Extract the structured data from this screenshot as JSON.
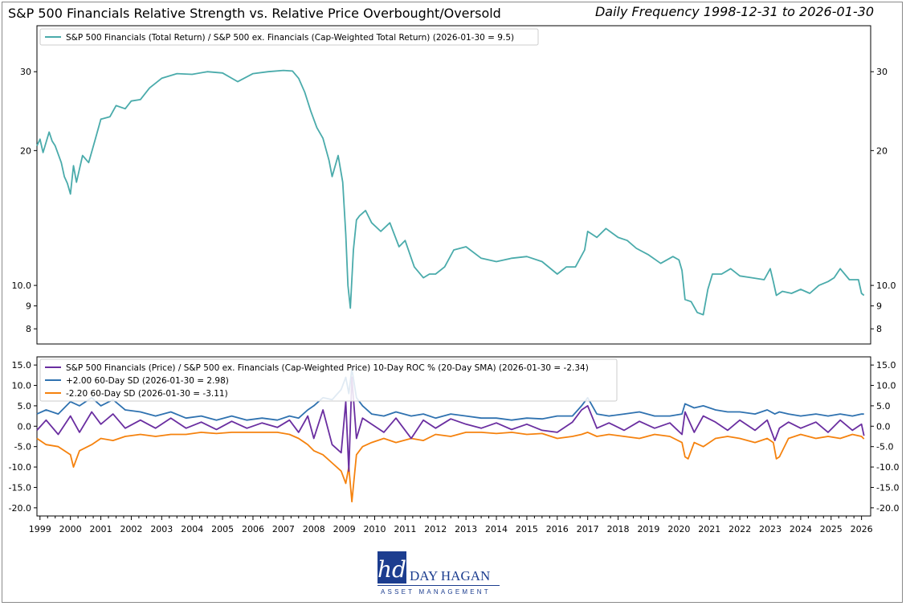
{
  "title": "S&P 500 Financials Relative Strength vs. Relative Price Overbought/Oversold",
  "subtitle": "Daily Frequency 1998-12-31 to 2026-01-30",
  "colors": {
    "ratio": "#4aabab",
    "roc": "#6a2ea0",
    "upper": "#2f72b0",
    "lower": "#f5820e",
    "logo_blue": "#1c3d8f"
  },
  "logo": {
    "monogram": "hd",
    "name": "DAY HAGAN",
    "tagline": "ASSET MANAGEMENT"
  },
  "chart_data": [
    {
      "type": "line",
      "scale": "log",
      "yticks": [
        8,
        9,
        10.0,
        20,
        30
      ],
      "ytick_labels": [
        "8",
        "9",
        "10.0",
        "20",
        "30"
      ],
      "ylim": [
        7.4,
        38
      ],
      "xlim": [
        1998.9,
        2026.3
      ],
      "legend_placement": "top-left",
      "series": [
        {
          "name": "S&P 500 Financials (Total Return) / S&P 500 ex. Financials (Cap-Weighted Total Return) (2026-01-30 = 9.5)",
          "x": [
            1998.9,
            1999.0,
            1999.1,
            1999.3,
            1999.4,
            1999.5,
            1999.7,
            1999.8,
            1999.9,
            2000.0,
            2000.1,
            2000.2,
            2000.4,
            2000.6,
            2000.8,
            2001.0,
            2001.3,
            2001.5,
            2001.8,
            2002.0,
            2002.3,
            2002.6,
            2003.0,
            2003.5,
            2004.0,
            2004.5,
            2005.0,
            2005.5,
            2006.0,
            2006.5,
            2007.0,
            2007.3,
            2007.5,
            2007.7,
            2007.9,
            2008.1,
            2008.3,
            2008.5,
            2008.6,
            2008.8,
            2008.95,
            2009.05,
            2009.12,
            2009.2,
            2009.3,
            2009.4,
            2009.5,
            2009.7,
            2009.9,
            2010.2,
            2010.5,
            2010.8,
            2011.0,
            2011.3,
            2011.6,
            2011.8,
            2012.0,
            2012.3,
            2012.6,
            2013.0,
            2013.5,
            2014.0,
            2014.5,
            2015.0,
            2015.5,
            2016.0,
            2016.3,
            2016.6,
            2016.9,
            2017.0,
            2017.3,
            2017.6,
            2018.0,
            2018.3,
            2018.6,
            2019.0,
            2019.4,
            2019.8,
            2020.0,
            2020.1,
            2020.2,
            2020.4,
            2020.6,
            2020.8,
            2020.95,
            2021.1,
            2021.4,
            2021.7,
            2022.0,
            2022.4,
            2022.8,
            2023.0,
            2023.1,
            2023.2,
            2023.4,
            2023.7,
            2024.0,
            2024.3,
            2024.6,
            2024.9,
            2025.1,
            2025.3,
            2025.6,
            2025.9,
            2026.0,
            2026.08
          ],
          "values": [
            20.5,
            21.2,
            19.8,
            22.0,
            21.0,
            20.5,
            18.8,
            17.5,
            16.9,
            16.0,
            18.5,
            17.0,
            19.5,
            18.8,
            21.0,
            23.5,
            23.8,
            25.2,
            24.8,
            25.8,
            26.0,
            27.6,
            29.0,
            29.7,
            29.6,
            30.0,
            29.8,
            28.5,
            29.7,
            30.0,
            30.2,
            30.1,
            29.0,
            27.0,
            24.5,
            22.5,
            21.3,
            19.0,
            17.5,
            19.5,
            17.0,
            13.0,
            10.0,
            8.9,
            12.0,
            14.0,
            14.3,
            14.7,
            13.8,
            13.2,
            13.8,
            12.2,
            12.6,
            11.0,
            10.4,
            10.6,
            10.6,
            11.0,
            12.0,
            12.2,
            11.5,
            11.3,
            11.5,
            11.6,
            11.3,
            10.6,
            11.0,
            11.0,
            12.0,
            13.2,
            12.8,
            13.4,
            12.8,
            12.6,
            12.1,
            11.7,
            11.2,
            11.6,
            11.4,
            10.8,
            9.3,
            9.2,
            8.7,
            8.6,
            9.8,
            10.6,
            10.6,
            10.9,
            10.5,
            10.4,
            10.3,
            10.9,
            10.2,
            9.5,
            9.7,
            9.6,
            9.8,
            9.6,
            10.0,
            10.2,
            10.4,
            10.9,
            10.3,
            10.3,
            9.6,
            9.5
          ]
        }
      ]
    },
    {
      "type": "line",
      "yticks": [
        -20.0,
        -15.0,
        -10.0,
        -5.0,
        0.0,
        5.0,
        10.0,
        15.0
      ],
      "ytick_labels": [
        "-20.0",
        "-15.0",
        "-10.0",
        "-5.0",
        "0.0",
        "5.0",
        "10.0",
        "15.0"
      ],
      "ylim": [
        -22,
        17
      ],
      "xlim": [
        1998.9,
        2026.3
      ],
      "xticks": [
        1999,
        2000,
        2001,
        2002,
        2003,
        2004,
        2005,
        2006,
        2007,
        2008,
        2009,
        2010,
        2011,
        2012,
        2013,
        2014,
        2015,
        2016,
        2017,
        2018,
        2019,
        2020,
        2021,
        2022,
        2023,
        2024,
        2025,
        2026
      ],
      "xtick_labels": [
        "1999",
        "2000",
        "2001",
        "2002",
        "2003",
        "2004",
        "2005",
        "2006",
        "2007",
        "2008",
        "2009",
        "2010",
        "2011",
        "2012",
        "2013",
        "2014",
        "2015",
        "2016",
        "2017",
        "2018",
        "2019",
        "2020",
        "2021",
        "2022",
        "2023",
        "2024",
        "2025",
        "2026"
      ],
      "legend_placement": "top-left",
      "series": [
        {
          "name": "S&P 500 Financials (Price) / S&P 500 ex. Financials (Cap-Weighted Price) 10-Day ROC % (20-Day SMA) (2026-01-30 = -2.34)",
          "x": [
            1998.9,
            1999.2,
            1999.6,
            2000.0,
            2000.3,
            2000.7,
            2001.0,
            2001.4,
            2001.8,
            2002.3,
            2002.8,
            2003.3,
            2003.8,
            2004.3,
            2004.8,
            2005.3,
            2005.8,
            2006.3,
            2006.8,
            2007.2,
            2007.5,
            2007.8,
            2008.0,
            2008.3,
            2008.6,
            2008.9,
            2009.05,
            2009.15,
            2009.25,
            2009.4,
            2009.6,
            2009.9,
            2010.3,
            2010.7,
            2011.2,
            2011.6,
            2012.0,
            2012.5,
            2013.0,
            2013.5,
            2014.0,
            2014.5,
            2015.0,
            2015.5,
            2016.0,
            2016.5,
            2016.8,
            2017.0,
            2017.3,
            2017.7,
            2018.2,
            2018.7,
            2019.2,
            2019.7,
            2020.1,
            2020.2,
            2020.5,
            2020.8,
            2021.2,
            2021.6,
            2022.0,
            2022.5,
            2022.9,
            2023.15,
            2023.3,
            2023.6,
            2024.0,
            2024.5,
            2024.9,
            2025.3,
            2025.7,
            2026.0,
            2026.08
          ],
          "values": [
            -1.0,
            1.5,
            -2.0,
            2.5,
            -1.5,
            3.5,
            0.5,
            3.0,
            -0.5,
            1.5,
            -0.5,
            2.0,
            -0.5,
            1.0,
            -0.8,
            1.2,
            -0.5,
            0.8,
            -0.3,
            1.5,
            -1.5,
            2.5,
            -3.0,
            4.0,
            -4.5,
            -6.5,
            6.0,
            -11.0,
            12.0,
            -3.0,
            2.0,
            0.5,
            -1.5,
            2.0,
            -3.0,
            1.5,
            -0.5,
            1.8,
            0.5,
            -0.5,
            0.8,
            -0.8,
            0.5,
            -1.0,
            -1.5,
            1.0,
            4.0,
            5.0,
            -0.5,
            0.8,
            -1.0,
            1.2,
            -0.5,
            0.8,
            -2.0,
            3.5,
            -1.5,
            2.5,
            1.0,
            -1.0,
            1.5,
            -1.0,
            1.5,
            -3.5,
            -0.5,
            1.0,
            -0.5,
            1.0,
            -1.5,
            1.5,
            -1.0,
            0.5,
            -2.34
          ]
        },
        {
          "name": "+2.00 60-Day SD (2026-01-30 = 2.98)",
          "x": [
            1998.9,
            1999.2,
            1999.6,
            2000.0,
            2000.3,
            2000.7,
            2001.0,
            2001.4,
            2001.8,
            2002.3,
            2002.8,
            2003.3,
            2003.8,
            2004.3,
            2004.8,
            2005.3,
            2005.8,
            2006.3,
            2006.8,
            2007.2,
            2007.5,
            2007.8,
            2008.0,
            2008.3,
            2008.6,
            2008.9,
            2009.05,
            2009.15,
            2009.25,
            2009.4,
            2009.6,
            2009.9,
            2010.3,
            2010.7,
            2011.2,
            2011.6,
            2012.0,
            2012.5,
            2013.0,
            2013.5,
            2014.0,
            2014.5,
            2015.0,
            2015.5,
            2016.0,
            2016.5,
            2016.8,
            2017.0,
            2017.3,
            2017.7,
            2018.2,
            2018.7,
            2019.2,
            2019.7,
            2020.1,
            2020.2,
            2020.5,
            2020.8,
            2021.2,
            2021.6,
            2022.0,
            2022.5,
            2022.9,
            2023.15,
            2023.3,
            2023.6,
            2024.0,
            2024.5,
            2024.9,
            2025.3,
            2025.7,
            2026.0,
            2026.08
          ],
          "values": [
            3.0,
            4.0,
            3.0,
            6.0,
            5.0,
            7.0,
            5.0,
            6.5,
            4.0,
            3.5,
            2.5,
            3.5,
            2.0,
            2.5,
            1.5,
            2.5,
            1.5,
            2.0,
            1.5,
            2.5,
            2.0,
            4.0,
            5.0,
            7.0,
            6.5,
            9.0,
            12.0,
            8.0,
            14.0,
            7.0,
            5.0,
            3.0,
            2.5,
            3.5,
            2.5,
            3.0,
            2.0,
            3.0,
            2.5,
            2.0,
            2.0,
            1.5,
            2.0,
            1.8,
            2.5,
            2.5,
            5.0,
            7.0,
            3.0,
            2.5,
            3.0,
            3.5,
            2.5,
            2.5,
            3.0,
            5.5,
            4.5,
            5.0,
            4.0,
            3.5,
            3.5,
            3.0,
            4.0,
            3.0,
            3.5,
            3.0,
            2.5,
            3.0,
            2.5,
            3.0,
            2.5,
            3.0,
            2.98
          ]
        },
        {
          "name": "-2.20 60-Day SD (2026-01-30 = -3.11)",
          "x": [
            1998.9,
            1999.2,
            1999.6,
            2000.0,
            2000.1,
            2000.3,
            2000.7,
            2001.0,
            2001.4,
            2001.8,
            2002.3,
            2002.8,
            2003.3,
            2003.8,
            2004.3,
            2004.8,
            2005.3,
            2005.8,
            2006.3,
            2006.8,
            2007.2,
            2007.5,
            2007.8,
            2008.0,
            2008.3,
            2008.6,
            2008.9,
            2009.05,
            2009.15,
            2009.25,
            2009.4,
            2009.6,
            2009.9,
            2010.3,
            2010.7,
            2011.2,
            2011.6,
            2012.0,
            2012.5,
            2013.0,
            2013.5,
            2014.0,
            2014.5,
            2015.0,
            2015.5,
            2016.0,
            2016.5,
            2016.8,
            2017.0,
            2017.3,
            2017.7,
            2018.2,
            2018.7,
            2019.2,
            2019.7,
            2020.1,
            2020.2,
            2020.3,
            2020.5,
            2020.8,
            2021.2,
            2021.6,
            2022.0,
            2022.5,
            2022.9,
            2023.1,
            2023.2,
            2023.3,
            2023.6,
            2024.0,
            2024.5,
            2024.9,
            2025.3,
            2025.7,
            2026.0,
            2026.08
          ],
          "values": [
            -3.0,
            -4.5,
            -5.0,
            -7.0,
            -10.0,
            -6.0,
            -4.5,
            -3.0,
            -3.5,
            -2.5,
            -2.0,
            -2.5,
            -2.0,
            -2.0,
            -1.5,
            -1.8,
            -1.5,
            -1.5,
            -1.5,
            -1.5,
            -2.0,
            -3.0,
            -4.5,
            -6.0,
            -7.0,
            -9.0,
            -11.0,
            -14.0,
            -10.0,
            -18.5,
            -7.0,
            -5.0,
            -4.0,
            -3.0,
            -4.0,
            -3.0,
            -3.5,
            -2.0,
            -2.5,
            -1.5,
            -1.5,
            -1.8,
            -1.5,
            -2.0,
            -1.8,
            -3.0,
            -2.5,
            -2.0,
            -1.5,
            -2.5,
            -2.0,
            -2.5,
            -3.0,
            -2.0,
            -2.5,
            -4.0,
            -7.5,
            -8.0,
            -4.0,
            -5.0,
            -3.0,
            -2.5,
            -3.0,
            -4.0,
            -3.0,
            -4.0,
            -8.0,
            -7.5,
            -3.0,
            -2.0,
            -3.0,
            -2.5,
            -3.0,
            -2.0,
            -2.5,
            -3.11
          ]
        }
      ]
    }
  ]
}
